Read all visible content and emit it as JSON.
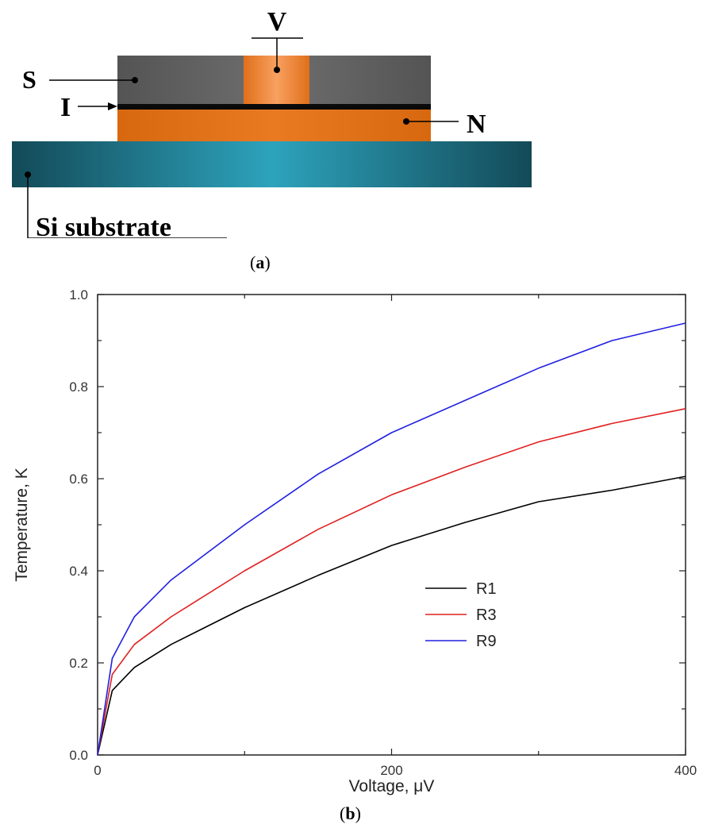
{
  "diagram": {
    "labels": {
      "v": "V",
      "s": "S",
      "i": "I",
      "n": "N",
      "substrate": "Si substrate"
    },
    "colors": {
      "superconductor": "#5f5f5f",
      "normal_metal": "#e07018",
      "insulator": "#0a0a0a",
      "substrate": "#1f7f92"
    }
  },
  "captions": {
    "a": "a",
    "b": "b"
  },
  "chart_data": {
    "type": "line",
    "title": "",
    "xlabel": "Voltage, μV",
    "ylabel": "Temperature, K",
    "xlim": [
      0,
      400
    ],
    "ylim": [
      0.0,
      1.0
    ],
    "x_ticks": [
      0,
      200,
      400
    ],
    "x_tick_labels": [
      "0",
      "200",
      "400"
    ],
    "y_ticks": [
      0.0,
      0.2,
      0.4,
      0.6,
      0.8,
      1.0
    ],
    "y_tick_labels": [
      "0.0",
      "0.2",
      "0.4",
      "0.6",
      "0.8",
      "1.0"
    ],
    "grid": false,
    "legend_position": "center-right",
    "x": [
      0,
      10,
      25,
      50,
      100,
      150,
      200,
      250,
      300,
      350,
      400
    ],
    "series": [
      {
        "name": "R1",
        "color": "#000000",
        "values": [
          0.0,
          0.14,
          0.19,
          0.24,
          0.32,
          0.39,
          0.455,
          0.505,
          0.55,
          0.575,
          0.605
        ]
      },
      {
        "name": "R3",
        "color": "#e02020",
        "values": [
          0.0,
          0.175,
          0.24,
          0.3,
          0.4,
          0.49,
          0.565,
          0.625,
          0.68,
          0.72,
          0.752
        ]
      },
      {
        "name": "R9",
        "color": "#2020e0",
        "values": [
          0.0,
          0.21,
          0.3,
          0.38,
          0.5,
          0.61,
          0.7,
          0.77,
          0.84,
          0.9,
          0.938
        ]
      }
    ]
  }
}
